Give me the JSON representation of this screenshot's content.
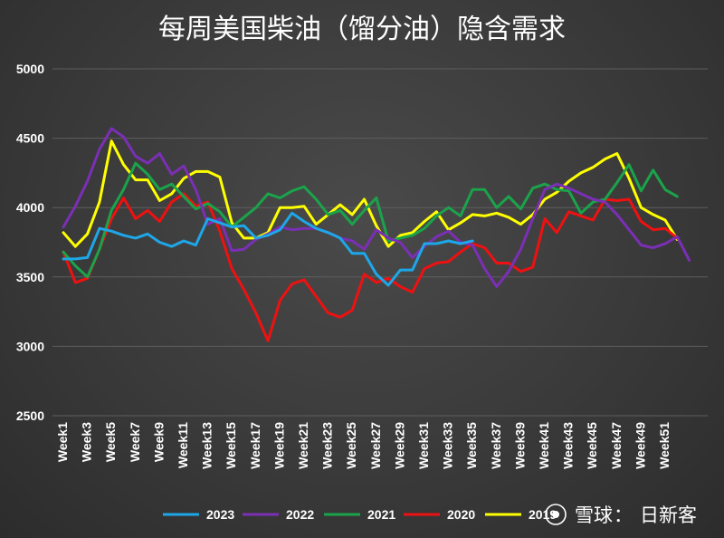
{
  "chart_data": {
    "type": "line",
    "title": "每周美国柴油（馏分油）隐含需求",
    "ylim": [
      2500,
      5000
    ],
    "yticks": [
      2500,
      3000,
      3500,
      4000,
      4500,
      5000
    ],
    "x_tick_labels": [
      "Week1",
      "Week3",
      "Week5",
      "Week7",
      "Week9",
      "Week11",
      "Week13",
      "Week15",
      "Week17",
      "Week19",
      "Week21",
      "Week23",
      "Week25",
      "Week27",
      "Week29",
      "Week31",
      "Week33",
      "Week35",
      "Week37",
      "Week39",
      "Week41",
      "Week43",
      "Week45",
      "Week47",
      "Week49",
      "Week51"
    ],
    "grid": true,
    "legend_position": "bottom",
    "series": [
      {
        "name": "2023",
        "color": "#1ea7e8",
        "values": [
          3630,
          3630,
          3640,
          3850,
          3830,
          3800,
          3780,
          3810,
          3750,
          3720,
          3760,
          3730,
          3920,
          3890,
          3860,
          3870,
          3780,
          3800,
          3840,
          3960,
          3900,
          3850,
          3820,
          3780,
          3670,
          3670,
          3520,
          3440,
          3550,
          3550,
          3740,
          3740,
          3760,
          3740,
          3760
        ]
      },
      {
        "name": "2022",
        "color": "#7b2fb5",
        "values": [
          3860,
          4010,
          4190,
          4420,
          4570,
          4510,
          4370,
          4320,
          4390,
          4240,
          4300,
          4130,
          3880,
          3920,
          3690,
          3700,
          3770,
          3810,
          3860,
          3840,
          3850,
          3850,
          3820,
          3780,
          3760,
          3700,
          3840,
          3780,
          3750,
          3640,
          3720,
          3790,
          3830,
          3750,
          3730,
          3560,
          3430,
          3540,
          3700,
          3920,
          4130,
          4170,
          4140,
          4100,
          4060,
          4040,
          3950,
          3840,
          3730,
          3710,
          3740,
          3790,
          3620
        ]
      },
      {
        "name": "2021",
        "color": "#1aa34a",
        "values": [
          3680,
          3580,
          3500,
          3700,
          3980,
          4130,
          4320,
          4240,
          4130,
          4170,
          4080,
          3990,
          4030,
          3970,
          3860,
          3930,
          4000,
          4100,
          4070,
          4120,
          4150,
          4060,
          3950,
          3980,
          3880,
          3980,
          4070,
          3760,
          3780,
          3800,
          3850,
          3940,
          4000,
          3940,
          4130,
          4130,
          4000,
          4080,
          3990,
          4140,
          4170,
          4130,
          4120,
          3960,
          4040,
          4060,
          4180,
          4310,
          4120,
          4270,
          4130,
          4080
        ]
      },
      {
        "name": "2020",
        "color": "#ee1111",
        "values": [
          3680,
          3460,
          3490,
          3700,
          3920,
          4070,
          3920,
          3980,
          3900,
          4040,
          4100,
          4010,
          4040,
          3830,
          3560,
          3410,
          3240,
          3040,
          3330,
          3450,
          3480,
          3360,
          3240,
          3210,
          3260,
          3520,
          3460,
          3490,
          3430,
          3390,
          3560,
          3600,
          3610,
          3680,
          3740,
          3710,
          3600,
          3600,
          3540,
          3570,
          3920,
          3820,
          3970,
          3940,
          3910,
          4060,
          4050,
          4060,
          3900,
          3840,
          3850,
          3780
        ]
      },
      {
        "name": "2019",
        "color": "#ffff00",
        "values": [
          3820,
          3720,
          3810,
          4040,
          4480,
          4310,
          4200,
          4200,
          4050,
          4100,
          4210,
          4260,
          4260,
          4220,
          3890,
          3780,
          3780,
          3820,
          4000,
          4000,
          4010,
          3880,
          3950,
          4020,
          3950,
          4060,
          3870,
          3720,
          3800,
          3820,
          3900,
          3970,
          3840,
          3890,
          3950,
          3940,
          3960,
          3930,
          3880,
          3950,
          4060,
          4110,
          4190,
          4250,
          4290,
          4350,
          4390,
          4210,
          4000,
          3950,
          3910,
          3770
        ]
      }
    ]
  },
  "watermark": {
    "brand": "雪球",
    "separator": "：",
    "author": "日新客"
  }
}
